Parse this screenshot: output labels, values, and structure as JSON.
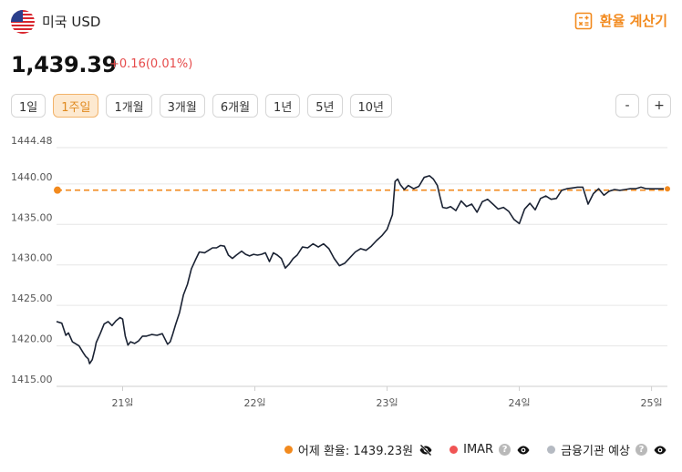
{
  "header": {
    "currency_name": "미국 USD",
    "calculator_label": "환율 계산기",
    "flag_icon": "us-flag-icon"
  },
  "quote": {
    "price": "1,439.39",
    "change": "+0.16(0.01%)"
  },
  "periods": [
    "1일",
    "1주일",
    "1개월",
    "3개월",
    "6개월",
    "1년",
    "5년",
    "10년"
  ],
  "active_period": "1주일",
  "zoom": {
    "minus": "-",
    "plus": "+"
  },
  "legend": {
    "yesterday_label": "어제 환율: 1439.23원",
    "imar_label": "IMAR",
    "forecast_label": "금융기관 예상",
    "help_glyph": "?"
  },
  "colors": {
    "accent": "#f28a1e",
    "line": "#1a2233",
    "change_up": "#e64b4b",
    "imar": "#f05454",
    "forecast": "#b5bac2"
  },
  "chart_data": {
    "type": "line",
    "y_ticks": [
      "1444.48",
      "1440.00",
      "1435.00",
      "1430.00",
      "1425.00",
      "1420.00",
      "1415.00"
    ],
    "y_tick_values": [
      1444.48,
      1440,
      1435,
      1430,
      1425,
      1420,
      1415
    ],
    "x_ticks": [
      "21일",
      "22일",
      "23일",
      "24일",
      "25일"
    ],
    "x_tick_values": [
      0.5,
      1.5,
      2.5,
      3.5,
      4.5
    ],
    "ylim": [
      1415,
      1444.48
    ],
    "xlim": [
      0,
      4.62
    ],
    "reference_line": {
      "label": "어제 환율",
      "value": 1439.23
    },
    "series": [
      {
        "x": [
          0,
          0.04,
          0.07,
          0.09,
          0.12,
          0.15,
          0.17,
          0.2,
          0.22,
          0.24,
          0.25,
          0.27,
          0.29,
          0.3,
          0.33,
          0.36,
          0.39,
          0.42,
          0.45,
          0.48,
          0.5,
          0.52,
          0.54,
          0.56,
          0.59,
          0.62,
          0.65,
          0.68,
          0.72,
          0.76,
          0.8,
          0.84,
          0.86,
          0.88,
          0.9,
          0.93,
          0.96,
          0.99,
          1.02,
          1.05,
          1.08,
          1.12,
          1.15,
          1.18,
          1.21,
          1.24,
          1.27,
          1.3,
          1.33,
          1.36,
          1.4,
          1.43,
          1.46,
          1.49,
          1.52,
          1.55,
          1.58,
          1.61,
          1.64,
          1.67,
          1.7,
          1.73,
          1.76,
          1.79,
          1.82,
          1.86,
          1.9,
          1.94,
          1.98,
          2.02,
          2.06,
          2.1,
          2.14,
          2.18,
          2.22,
          2.26,
          2.3,
          2.34,
          2.38,
          2.42,
          2.46,
          2.5,
          2.54,
          2.56,
          2.58,
          2.6,
          2.63,
          2.66,
          2.7,
          2.74,
          2.78,
          2.82,
          2.85,
          2.88,
          2.9,
          2.92,
          2.95,
          2.98,
          3.02,
          3.06,
          3.1,
          3.14,
          3.18,
          3.22,
          3.26,
          3.3,
          3.34,
          3.38,
          3.42,
          3.46,
          3.5,
          3.54,
          3.58,
          3.62,
          3.66,
          3.7,
          3.74,
          3.78,
          3.82,
          3.86,
          3.9,
          3.94,
          3.98,
          4.02,
          4.06,
          4.1,
          4.14,
          4.18,
          4.22,
          4.26,
          4.3,
          4.34,
          4.38,
          4.42,
          4.46,
          4.5,
          4.52,
          4.54,
          4.56,
          4.58,
          4.6,
          4.62
        ],
        "y": [
          1423,
          1422.8,
          1421.3,
          1421.6,
          1420.5,
          1420.2,
          1420,
          1419.2,
          1418.7,
          1418.4,
          1417.8,
          1418.3,
          1419.6,
          1420.4,
          1421.5,
          1422.7,
          1423,
          1422.5,
          1423.1,
          1423.5,
          1423.3,
          1421.2,
          1420.1,
          1420.5,
          1420.3,
          1420.6,
          1421.2,
          1421.2,
          1421.4,
          1421.3,
          1421.5,
          1420.2,
          1420.5,
          1421.5,
          1422.6,
          1424.1,
          1426.3,
          1427.6,
          1429.5,
          1430.6,
          1431.6,
          1431.5,
          1431.8,
          1432.1,
          1432.1,
          1432.4,
          1432.3,
          1431.2,
          1430.8,
          1431.2,
          1431.7,
          1431.3,
          1431.1,
          1431.3,
          1431.2,
          1431.3,
          1431.5,
          1430.4,
          1431.5,
          1431.2,
          1430.8,
          1429.6,
          1430.1,
          1430.8,
          1431.2,
          1432.2,
          1432.1,
          1432.6,
          1432.2,
          1432.6,
          1432,
          1430.8,
          1429.9,
          1430.2,
          1430.9,
          1431.6,
          1432,
          1431.8,
          1432.3,
          1433,
          1433.6,
          1434.4,
          1436.2,
          1440.3,
          1440.6,
          1439.9,
          1439.3,
          1439.8,
          1439.4,
          1439.7,
          1440.8,
          1441,
          1440.6,
          1439.8,
          1438.4,
          1437.1,
          1437,
          1437.2,
          1436.7,
          1437.9,
          1437.2,
          1437.5,
          1436.5,
          1437.8,
          1438.1,
          1437.5,
          1436.9,
          1437.1,
          1436.6,
          1435.6,
          1435.1,
          1436.9,
          1437.6,
          1436.8,
          1438.2,
          1438.5,
          1438.1,
          1438.2,
          1439.2,
          1439.4,
          1439.5,
          1439.6,
          1439.6,
          1437.5,
          1438.8,
          1439.4,
          1438.6,
          1439.1,
          1439.3,
          1439.2,
          1439.3,
          1439.4,
          1439.4,
          1439.6,
          1439.4,
          1439.39,
          1439.39,
          1439.39,
          1439.39,
          1439.39,
          1439.39,
          1439.39
        ]
      }
    ]
  }
}
